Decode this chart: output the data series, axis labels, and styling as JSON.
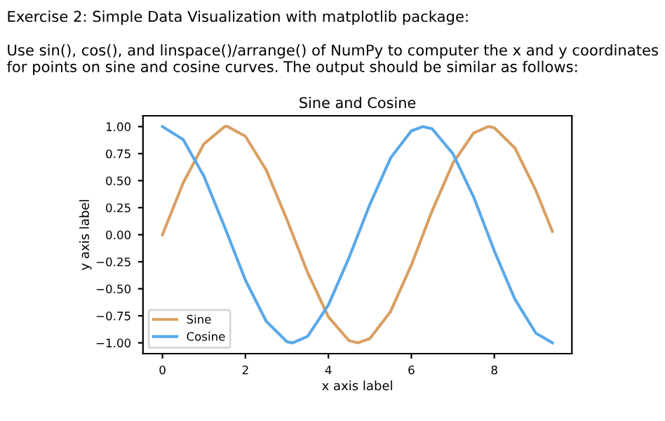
{
  "chart_data": {
    "type": "line",
    "title": "Sine and Cosine",
    "xlabel": "x axis label",
    "ylabel": "y axis label",
    "annotations": [
      "Exercise 2: Simple Data Visualization with matplotlib package:",
      "Use sin(), cos(), and linspace()/arrange() of NumPy to computer the x and y coordinates for points on sine and cosine curves. The output should be similar as follows:"
    ],
    "series": [
      {
        "name": "Sine",
        "color": "#d9a063",
        "x": [
          0,
          0.5,
          1,
          1.5,
          1.57,
          2,
          2.5,
          3,
          3.5,
          4,
          4.5,
          4.71,
          5,
          5.5,
          6,
          6.5,
          7,
          7.5,
          7.85,
          8,
          8.5,
          9,
          9.4
        ],
        "values": [
          0,
          0.48,
          0.84,
          1.0,
          1.0,
          0.91,
          0.6,
          0.14,
          -0.35,
          -0.76,
          -0.98,
          -1.0,
          -0.96,
          -0.71,
          -0.28,
          0.22,
          0.66,
          0.94,
          1.0,
          0.99,
          0.8,
          0.41,
          0.03
        ]
      },
      {
        "name": "Cosine",
        "color": "#5aa8e8",
        "x": [
          0,
          0.5,
          1,
          1.5,
          2,
          2.5,
          3,
          3.14,
          3.5,
          4,
          4.5,
          5,
          5.5,
          6,
          6.28,
          6.5,
          7,
          7.5,
          8,
          8.5,
          9,
          9.4
        ],
        "values": [
          1.0,
          0.88,
          0.54,
          0.07,
          -0.42,
          -0.8,
          -0.99,
          -1.0,
          -0.94,
          -0.65,
          -0.21,
          0.28,
          0.71,
          0.96,
          1.0,
          0.98,
          0.75,
          0.35,
          -0.15,
          -0.6,
          -0.91,
          -1.0
        ]
      }
    ],
    "xlim": [
      -0.47,
      9.87
    ],
    "ylim": [
      -1.1,
      1.1
    ],
    "xticks": [
      0,
      2,
      4,
      6,
      8
    ],
    "yticks": [
      {
        "value": -1,
        "label": "−1.00"
      },
      {
        "value": -0.75,
        "label": "−0.75"
      },
      {
        "value": -0.5,
        "label": "−0.50"
      },
      {
        "value": -0.25,
        "label": "−0.25"
      },
      {
        "value": 0,
        "label": "0.00"
      },
      {
        "value": 0.25,
        "label": "0.25"
      },
      {
        "value": 0.5,
        "label": "0.50"
      },
      {
        "value": 0.75,
        "label": "0.75"
      },
      {
        "value": 1,
        "label": "1.00"
      }
    ],
    "legend": "bottom left",
    "grid": false
  }
}
